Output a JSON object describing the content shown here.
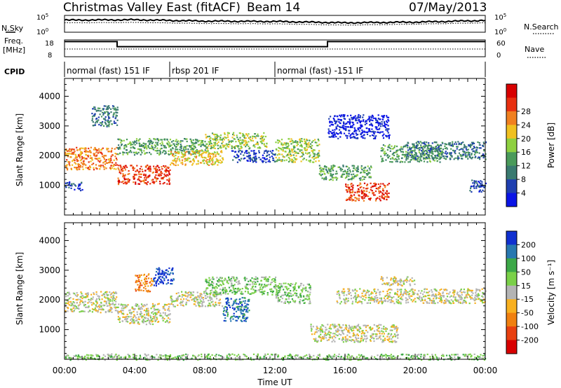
{
  "header": {
    "title": "Christmas Valley East (fitACF)",
    "beam": "Beam 14",
    "date": "07/May/2013"
  },
  "panel_labels": {
    "nsky": "N.Sky",
    "nsearch": "N.Search",
    "freq": "Freq.",
    "freq_unit": "[MHz]",
    "nave": "Nave",
    "cpid": "CPID"
  },
  "colors": {
    "power": [
      "#0a14e6",
      "#1f3fb0",
      "#3a7a70",
      "#4a9a5a",
      "#8ed040",
      "#f0c020",
      "#f08020",
      "#e83010",
      "#d80000"
    ],
    "velocity": [
      "#1030d0",
      "#2878b0",
      "#3ca848",
      "#7ad048",
      "#b4b4b4",
      "#f8b020",
      "#f08010",
      "#e84010",
      "#d80000"
    ]
  },
  "chart_data": [
    {
      "type": "line",
      "name": "noise",
      "left_label": "N.Sky",
      "right_label": "N.Search",
      "left_ticks": [
        "10^5",
        "10^0"
      ],
      "right_ticks": [
        "10^5",
        "10^0"
      ],
      "x": [
        0,
        4,
        8,
        12,
        16,
        20,
        24
      ],
      "series": [
        {
          "values": [
            3.6,
            3.7,
            3.3,
            3.2,
            2.8,
            3.0,
            3.5
          ]
        },
        {
          "values": [
            2.8,
            2.9,
            2.6,
            2.5,
            2.1,
            2.4,
            2.8
          ]
        }
      ]
    },
    {
      "type": "line",
      "name": "frequency",
      "left_label": "Freq. [MHz]",
      "right_label": "Nave",
      "left_ticks": [
        "18",
        "8"
      ],
      "right_ticks": [
        "60",
        "0"
      ],
      "freq_steps": [
        {
          "x0": 0,
          "x1": 3.0,
          "value": 17
        },
        {
          "x0": 3.0,
          "x1": 15.0,
          "value": 14
        },
        {
          "x0": 15.0,
          "x1": 24,
          "value": 17
        }
      ]
    },
    {
      "type": "table",
      "name": "cpid",
      "segments": [
        {
          "start": 0,
          "end": 6,
          "label": "normal (fast) 151 IF"
        },
        {
          "start": 6,
          "end": 12,
          "label": "rbsp 201 IF"
        },
        {
          "start": 12,
          "end": 24,
          "label": "normal (fast) -151 IF"
        }
      ]
    },
    {
      "type": "heatmap",
      "name": "power",
      "ylabel": "Slant Range [km]",
      "ylim": [
        0,
        4600
      ],
      "yticks": [
        1000,
        2000,
        3000,
        4000
      ],
      "colorbar_label": "Power [dB]",
      "colorbar_ticks": [
        "4",
        "8",
        "12",
        "16",
        "20",
        "24",
        "28"
      ],
      "bands": [
        {
          "x0": 0.0,
          "x1": 3.0,
          "y0": 1550,
          "y1": 2300,
          "level": 6
        },
        {
          "x0": 3.0,
          "x1": 6.0,
          "y0": 1050,
          "y1": 1700,
          "level": 7
        },
        {
          "x0": 3.0,
          "x1": 8.0,
          "y0": 2050,
          "y1": 2600,
          "level": 3
        },
        {
          "x0": 6.0,
          "x1": 9.0,
          "y0": 1700,
          "y1": 2200,
          "level": 5
        },
        {
          "x0": 8.0,
          "x1": 11.5,
          "y0": 2250,
          "y1": 2800,
          "level": 4
        },
        {
          "x0": 9.5,
          "x1": 12.0,
          "y0": 1800,
          "y1": 2200,
          "level": 1
        },
        {
          "x0": 12.0,
          "x1": 14.5,
          "y0": 1800,
          "y1": 2600,
          "level": 4
        },
        {
          "x0": 14.5,
          "x1": 17.5,
          "y0": 1200,
          "y1": 1700,
          "level": 3
        },
        {
          "x0": 16.0,
          "x1": 18.5,
          "y0": 500,
          "y1": 1100,
          "level": 7
        },
        {
          "x0": 18.0,
          "x1": 21.5,
          "y0": 1800,
          "y1": 2400,
          "level": 3
        },
        {
          "x0": 19.5,
          "x1": 24.0,
          "y0": 1900,
          "y1": 2500,
          "level": 2
        },
        {
          "x0": 1.5,
          "x1": 3.0,
          "y0": 3000,
          "y1": 3700,
          "level": 2
        },
        {
          "x0": 15.0,
          "x1": 18.5,
          "y0": 2600,
          "y1": 3400,
          "level": 0
        },
        {
          "x0": 0.0,
          "x1": 1.0,
          "y0": 850,
          "y1": 1150,
          "level": 1
        },
        {
          "x0": 23.0,
          "x1": 24.0,
          "y0": 800,
          "y1": 1200,
          "level": 1
        }
      ]
    },
    {
      "type": "heatmap",
      "name": "velocity",
      "ylabel": "Slant Range [km]",
      "xlabel": "Time UT",
      "xticks": [
        "00:00",
        "04:00",
        "08:00",
        "12:00",
        "16:00",
        "20:00",
        "00:00"
      ],
      "ylim": [
        0,
        4600
      ],
      "yticks": [
        1000,
        2000,
        3000,
        4000
      ],
      "colorbar_label": "Velocity [m s⁻¹]",
      "colorbar_ticks": [
        "200",
        "100",
        "50",
        "15",
        "-15",
        "-50",
        "-100",
        "-200"
      ],
      "bands": [
        {
          "x0": 0.0,
          "x1": 3.0,
          "y0": 1600,
          "y1": 2300,
          "level": 4
        },
        {
          "x0": 3.0,
          "x1": 6.0,
          "y0": 1200,
          "y1": 1900,
          "level": 4
        },
        {
          "x0": 6.0,
          "x1": 9.0,
          "y0": 1800,
          "y1": 2300,
          "level": 4
        },
        {
          "x0": 8.0,
          "x1": 12.0,
          "y0": 2200,
          "y1": 2800,
          "level": 3
        },
        {
          "x0": 5.0,
          "x1": 6.2,
          "y0": 2500,
          "y1": 3100,
          "level": 0
        },
        {
          "x0": 4.0,
          "x1": 5.0,
          "y0": 2300,
          "y1": 2900,
          "level": 6
        },
        {
          "x0": 9.0,
          "x1": 10.5,
          "y0": 1300,
          "y1": 2100,
          "level": 1
        },
        {
          "x0": 12.0,
          "x1": 14.0,
          "y0": 1900,
          "y1": 2600,
          "level": 3
        },
        {
          "x0": 15.5,
          "x1": 24.0,
          "y0": 1900,
          "y1": 2400,
          "level": 4
        },
        {
          "x0": 14.0,
          "x1": 19.0,
          "y0": 600,
          "y1": 1200,
          "level": 4
        },
        {
          "x0": 18.0,
          "x1": 20.0,
          "y0": 2500,
          "y1": 2800,
          "level": 4
        },
        {
          "x0": 0.0,
          "x1": 24.0,
          "y0": 0,
          "y1": 200,
          "level": 3
        }
      ]
    }
  ]
}
